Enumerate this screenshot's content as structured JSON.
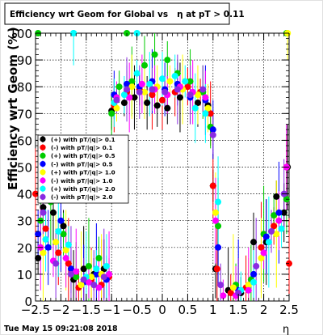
{
  "chart_data": {
    "type": "scatter",
    "title": "Efficiency wrt Geom for Global vs   η at pT > 0.11",
    "xlabel": "η",
    "ylabel": "Efficiency wrt Geom (%)",
    "xlim": [
      -2.5,
      2.5
    ],
    "ylim": [
      0,
      100
    ],
    "x_ticks": [
      -2.5,
      -2,
      -1.5,
      -1,
      -0.5,
      0,
      0.5,
      1,
      1.5,
      2,
      2.5
    ],
    "x_tick_labels": [
      "−2.5",
      "−2",
      "−1.5",
      "−1",
      "−0.5",
      "0",
      "0.5",
      "1",
      "1.5",
      "2",
      "2.5"
    ],
    "y_ticks": [
      0,
      10,
      20,
      30,
      40,
      50,
      60,
      70,
      80,
      90,
      100
    ],
    "y_tick_labels": [
      "0",
      "10",
      "20",
      "30",
      "40",
      "50",
      "60",
      "70",
      "80",
      "90",
      "100"
    ],
    "grid": true,
    "legend_position": "left",
    "footer_timestamp": "Tue May 15 09:21:08 2018",
    "series": [
      {
        "name": "(+) with pT/|q|> 0.1",
        "color": "#000000",
        "points": [
          [
            -2.45,
            16
          ],
          [
            -2.35,
            35
          ],
          [
            -2.15,
            33
          ],
          [
            -1.95,
            28
          ],
          [
            -1.75,
            8
          ],
          [
            -1.55,
            12
          ],
          [
            -1.35,
            10
          ],
          [
            -1.15,
            12
          ],
          [
            -1.0,
            71
          ],
          [
            -0.75,
            74
          ],
          [
            -0.55,
            76
          ],
          [
            -0.3,
            74
          ],
          [
            -0.1,
            73
          ],
          [
            0.1,
            72
          ],
          [
            0.35,
            76
          ],
          [
            0.55,
            77
          ],
          [
            0.7,
            74
          ],
          [
            0.9,
            73
          ],
          [
            1.0,
            43
          ],
          [
            1.05,
            12
          ],
          [
            1.3,
            4
          ],
          [
            1.55,
            3
          ],
          [
            1.8,
            22
          ],
          [
            2.05,
            22
          ],
          [
            2.25,
            39
          ],
          [
            2.4,
            33
          ],
          [
            2.47,
            50
          ]
        ]
      },
      {
        "name": "(-) with pT/|q|> 0.1",
        "color": "#ff0000",
        "points": [
          [
            -2.5,
            40
          ],
          [
            -2.3,
            27
          ],
          [
            -2.05,
            18
          ],
          [
            -1.85,
            14
          ],
          [
            -1.65,
            5
          ],
          [
            -1.4,
            8
          ],
          [
            -1.2,
            6
          ],
          [
            -1.05,
            9
          ],
          [
            -0.95,
            73
          ],
          [
            -0.7,
            78
          ],
          [
            -0.45,
            79
          ],
          [
            -0.2,
            77
          ],
          [
            0.0,
            75
          ],
          [
            0.25,
            78
          ],
          [
            0.5,
            80
          ],
          [
            0.75,
            78
          ],
          [
            0.95,
            70
          ],
          [
            1.0,
            43
          ],
          [
            1.08,
            12
          ],
          [
            1.35,
            3
          ],
          [
            1.65,
            5
          ],
          [
            1.95,
            20
          ],
          [
            2.2,
            28
          ],
          [
            2.45,
            50
          ],
          [
            2.5,
            14
          ]
        ]
      },
      {
        "name": "(+) with pT/|q|> 0.5",
        "color": "#00cc00",
        "points": [
          [
            -2.4,
            30
          ],
          [
            -2.2,
            37
          ],
          [
            -1.95,
            25
          ],
          [
            -1.7,
            9
          ],
          [
            -1.45,
            13
          ],
          [
            -1.25,
            16
          ],
          [
            -1.0,
            70
          ],
          [
            -0.85,
            80
          ],
          [
            -0.6,
            82
          ],
          [
            -0.35,
            88
          ],
          [
            -0.15,
            92
          ],
          [
            0.1,
            90
          ],
          [
            0.3,
            85
          ],
          [
            0.55,
            82
          ],
          [
            0.8,
            78
          ],
          [
            0.95,
            65
          ],
          [
            1.1,
            28
          ],
          [
            1.45,
            6
          ],
          [
            1.75,
            8
          ],
          [
            2.0,
            25
          ],
          [
            2.2,
            32
          ],
          [
            2.45,
            38
          ]
        ]
      },
      {
        "name": "(-) with pT/|q|> 0.5",
        "color": "#0000ff",
        "points": [
          [
            -2.45,
            25
          ],
          [
            -2.25,
            20
          ],
          [
            -2.0,
            30
          ],
          [
            -1.8,
            12
          ],
          [
            -1.55,
            7
          ],
          [
            -1.3,
            10
          ],
          [
            -1.1,
            8
          ],
          [
            -0.95,
            77
          ],
          [
            -0.7,
            81
          ],
          [
            -0.45,
            80
          ],
          [
            -0.2,
            82
          ],
          [
            0.05,
            79
          ],
          [
            0.3,
            81
          ],
          [
            0.55,
            76
          ],
          [
            0.85,
            75
          ],
          [
            1.0,
            64
          ],
          [
            1.1,
            20
          ],
          [
            1.5,
            4
          ],
          [
            1.8,
            10
          ],
          [
            2.05,
            24
          ],
          [
            2.3,
            33
          ]
        ]
      },
      {
        "name": "(+) with pT/|q|> 1.0",
        "color": "#ffff00",
        "points": [
          [
            -2.35,
            18
          ],
          [
            -2.1,
            22
          ],
          [
            -1.9,
            19
          ],
          [
            -1.6,
            6
          ],
          [
            -1.4,
            9
          ],
          [
            -1.2,
            10
          ],
          [
            -0.9,
            72
          ],
          [
            -0.6,
            80
          ],
          [
            -0.35,
            78
          ],
          [
            -0.1,
            80
          ],
          [
            0.15,
            82
          ],
          [
            0.4,
            79
          ],
          [
            0.7,
            77
          ],
          [
            0.9,
            72
          ],
          [
            1.05,
            33
          ],
          [
            1.4,
            5
          ],
          [
            1.7,
            6
          ],
          [
            1.95,
            16
          ],
          [
            2.25,
            25
          ],
          [
            2.47,
            100
          ]
        ]
      },
      {
        "name": "(-) with pT/|q|> 1.0",
        "color": "#ff00ff",
        "points": [
          [
            -2.4,
            20
          ],
          [
            -2.15,
            15
          ],
          [
            -1.9,
            16
          ],
          [
            -1.7,
            11
          ],
          [
            -1.45,
            7
          ],
          [
            -1.25,
            5
          ],
          [
            -1.05,
            10
          ],
          [
            -0.9,
            76
          ],
          [
            -0.65,
            76
          ],
          [
            -0.4,
            81
          ],
          [
            -0.15,
            79
          ],
          [
            0.1,
            77
          ],
          [
            0.35,
            80
          ],
          [
            0.6,
            78
          ],
          [
            0.85,
            76
          ],
          [
            1.05,
            30
          ],
          [
            1.2,
            2
          ],
          [
            1.45,
            2
          ],
          [
            1.7,
            4
          ],
          [
            2.0,
            18
          ],
          [
            2.3,
            30
          ],
          [
            2.45,
            50
          ]
        ]
      },
      {
        "name": "(+) with pT/|q|> 2.0",
        "color": "#00ffff",
        "points": [
          [
            -2.3,
            23
          ],
          [
            -2.05,
            26
          ],
          [
            -1.85,
            21
          ],
          [
            -1.75,
            100
          ],
          [
            -1.5,
            9
          ],
          [
            -1.3,
            12
          ],
          [
            -1.1,
            13
          ],
          [
            -0.95,
            74
          ],
          [
            -0.75,
            77
          ],
          [
            -0.5,
            85
          ],
          [
            -0.25,
            81
          ],
          [
            0.0,
            83
          ],
          [
            0.25,
            84
          ],
          [
            0.45,
            82
          ],
          [
            0.65,
            72
          ],
          [
            0.85,
            70
          ],
          [
            1.1,
            37
          ],
          [
            1.55,
            4
          ],
          [
            1.8,
            7
          ],
          [
            2.1,
            22
          ],
          [
            2.35,
            27
          ]
        ]
      },
      {
        "name": "(-) with pT/|q|> 2.0",
        "color": "#8a2be2",
        "points": [
          [
            -2.35,
            33
          ],
          [
            -2.1,
            14
          ],
          [
            -1.8,
            10
          ],
          [
            -1.55,
            8
          ],
          [
            -1.35,
            6
          ],
          [
            -1.15,
            9
          ],
          [
            -0.9,
            75
          ],
          [
            -0.7,
            79
          ],
          [
            -0.45,
            78
          ],
          [
            -0.2,
            79
          ],
          [
            0.05,
            78
          ],
          [
            0.3,
            79
          ],
          [
            0.55,
            77
          ],
          [
            0.8,
            79
          ],
          [
            1.0,
            62
          ],
          [
            1.15,
            6
          ],
          [
            1.5,
            3
          ],
          [
            1.85,
            13
          ],
          [
            2.15,
            26
          ],
          [
            2.4,
            40
          ]
        ]
      }
    ],
    "top_edge_markers": [
      {
        "x": -2.45,
        "y": 100,
        "color": "#00cc00"
      },
      {
        "x": -1.75,
        "y": 100,
        "color": "#00ffff"
      },
      {
        "x": -0.7,
        "y": 100,
        "color": "#00cc00"
      },
      {
        "x": -0.5,
        "y": 100,
        "color": "#00ffff"
      },
      {
        "x": 2.45,
        "y": 100,
        "color": "#00cc00"
      },
      {
        "x": 2.47,
        "y": 100,
        "color": "#ffff00"
      }
    ]
  }
}
